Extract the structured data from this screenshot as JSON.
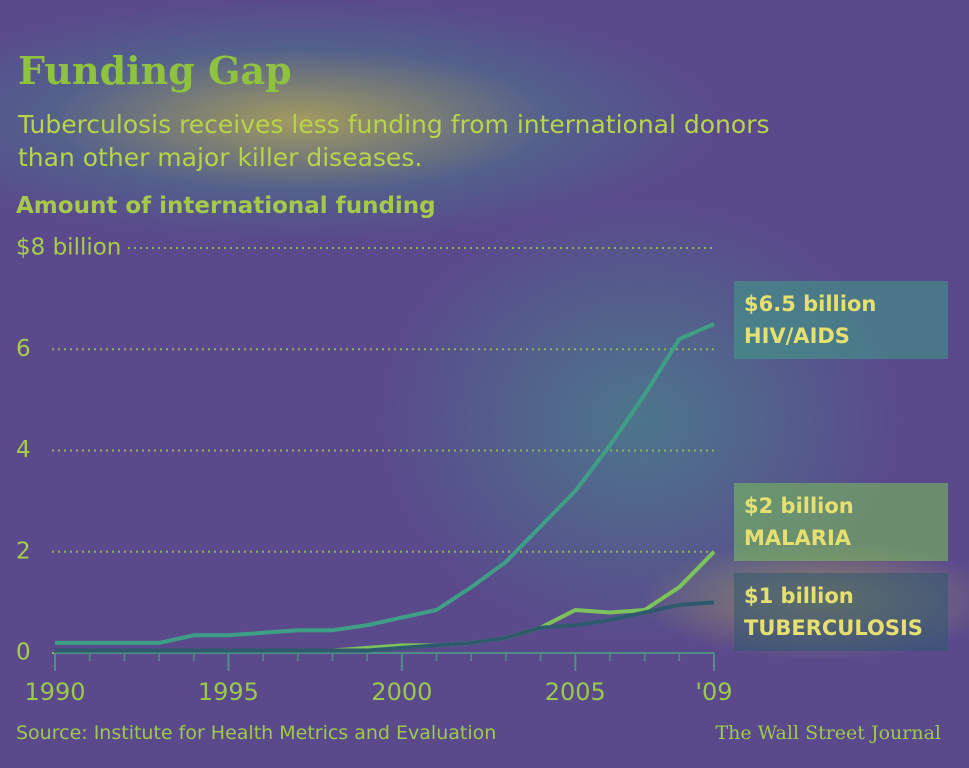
{
  "chart_data": {
    "type": "line",
    "title": "Funding Gap",
    "subtitle": "Tuberculosis receives less funding from international donors than other major killer diseases.",
    "y_label": "Amount of international funding",
    "source": "Source: Institute for Health Metrics and Evaluation",
    "credit": "The Wall Street Journal",
    "x": [
      1990,
      1991,
      1992,
      1993,
      1994,
      1995,
      1996,
      1997,
      1998,
      1999,
      2000,
      2001,
      2002,
      2003,
      2004,
      2005,
      2006,
      2007,
      2008,
      2009
    ],
    "xlim": [
      1990,
      2009
    ],
    "xticks": [
      1990,
      1995,
      2000,
      2005,
      {
        "value": 2009,
        "label": "'09"
      }
    ],
    "ylim": [
      0,
      8
    ],
    "yticks": [
      0,
      2,
      4,
      6,
      {
        "value": 8,
        "label": "$8 billion"
      }
    ],
    "grid": true,
    "series": [
      {
        "name": "HIV/AIDS",
        "color": "#3f9f86",
        "values": [
          0.2,
          0.2,
          0.2,
          0.2,
          0.35,
          0.35,
          0.4,
          0.45,
          0.45,
          0.55,
          0.7,
          0.85,
          1.3,
          1.8,
          2.5,
          3.2,
          4.1,
          5.1,
          6.2,
          6.5
        ],
        "value_labels": [
          null,
          null,
          null,
          null,
          null,
          null,
          null,
          null,
          null,
          null,
          null,
          null,
          null,
          null,
          null,
          null,
          null,
          null,
          null,
          "$6.5 billion"
        ]
      },
      {
        "name": "MALARIA",
        "color": "#7cc35a",
        "values": [
          0.05,
          0.05,
          0.05,
          0.05,
          0.05,
          0.05,
          0.05,
          0.05,
          0.05,
          0.1,
          0.15,
          0.15,
          0.2,
          0.3,
          0.5,
          0.85,
          0.8,
          0.85,
          1.3,
          2.0
        ],
        "value_labels": [
          null,
          null,
          null,
          null,
          null,
          null,
          null,
          null,
          null,
          null,
          null,
          null,
          null,
          null,
          null,
          null,
          null,
          null,
          null,
          "$2 billion"
        ]
      },
      {
        "name": "TUBERCULOSIS",
        "color": "#2f5a6e",
        "values": [
          0.05,
          0.05,
          0.05,
          0.05,
          0.05,
          0.05,
          0.05,
          0.05,
          0.05,
          0.05,
          0.1,
          0.15,
          0.2,
          0.3,
          0.5,
          0.55,
          0.65,
          0.8,
          0.95,
          1.0
        ],
        "value_labels": [
          null,
          null,
          null,
          null,
          null,
          null,
          null,
          null,
          null,
          null,
          null,
          null,
          null,
          null,
          null,
          null,
          null,
          null,
          null,
          "$1 billion"
        ]
      }
    ]
  }
}
